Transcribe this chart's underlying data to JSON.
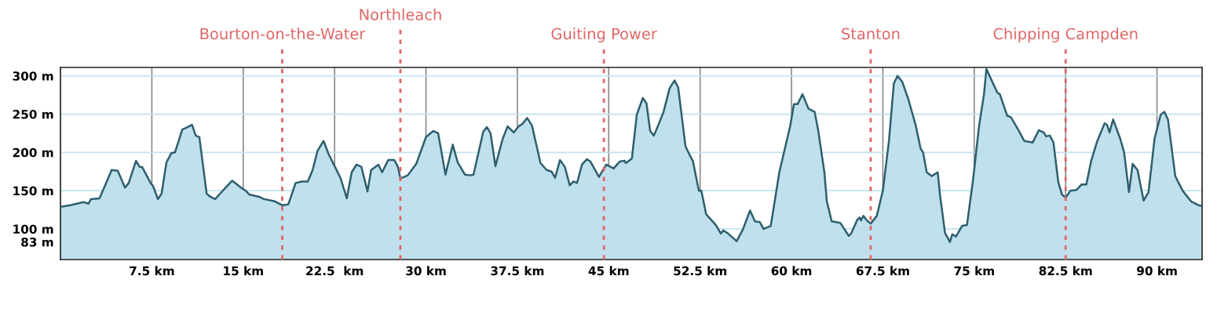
{
  "chart_data": {
    "type": "area",
    "series": [
      {
        "color": "#2e5f6e",
        "x": [
          0,
          0.8,
          1.9,
          2.3,
          2.5,
          3.2,
          3.7,
          4.2,
          4.7,
          5.3,
          5.6,
          6.2,
          6.5,
          6.7,
          7.4,
          7.6,
          8.0,
          8.3,
          8.7,
          9.1,
          9.4,
          10.0,
          10.3,
          10.8,
          11.1,
          11.4,
          12.0,
          12.3,
          12.7,
          13.5,
          14.1,
          14.9,
          15.2,
          15.5,
          16.3,
          16.7,
          17.6,
          18.2,
          18.7,
          19.3,
          19.8,
          20.3,
          20.7,
          21.1,
          21.6,
          22.0,
          22.6,
          23.0,
          23.5,
          23.9,
          24.3,
          24.7,
          25.2,
          25.5,
          26.1,
          26.4,
          26.9,
          27.4,
          27.7,
          27.9,
          28.5,
          29.2,
          30.0,
          30.6,
          31.0,
          31.6,
          32.2,
          32.6,
          33.2,
          33.6,
          33.9,
          34.7,
          35.0,
          35.3,
          35.7,
          36.3,
          36.7,
          37.2,
          37.6,
          37.9,
          38.3,
          38.7,
          39.4,
          39.9,
          40.3,
          40.6,
          41.0,
          41.4,
          41.8,
          42.1,
          42.4,
          42.8,
          43.2,
          43.5,
          44.2,
          44.8,
          45.4,
          45.9,
          46.3,
          46.4,
          46.9,
          47.3,
          47.8,
          48.1,
          48.4,
          48.7,
          49.0,
          49.5,
          50.0,
          50.4,
          50.7,
          51.3,
          51.6,
          51.9,
          52.4,
          52.6,
          53.0,
          53.8,
          54.2,
          54.4,
          54.8,
          55.5,
          56.0,
          56.6,
          57.0,
          57.4,
          57.7,
          58.3,
          59.0,
          59.9,
          60.2,
          60.5,
          60.9,
          61.4,
          61.9,
          62.2,
          62.7,
          62.9,
          63.3,
          64.0,
          64.7,
          64.9,
          65.4,
          65.6,
          65.7,
          65.9,
          66.2,
          66.5,
          67.0,
          67.5,
          68.0,
          68.4,
          68.7,
          69.1,
          69.6,
          70.2,
          70.6,
          70.8,
          71.1,
          71.5,
          72.0,
          72.2,
          72.6,
          73.0,
          73.2,
          73.5,
          74.0,
          74.4,
          74.9,
          75.4,
          75.8,
          76.0,
          76.4,
          76.9,
          77.1,
          77.7,
          78.0,
          78.6,
          79.1,
          79.8,
          80.3,
          80.7,
          80.9,
          81.2,
          81.5,
          81.9,
          82.2,
          82.5,
          82.9,
          83.4,
          83.8,
          84.2,
          84.6,
          85.1,
          85.7,
          85.9,
          86.1,
          86.4,
          87.0,
          87.3,
          87.7,
          88.0,
          88.4,
          88.9,
          89.3,
          89.8,
          90.3,
          90.6,
          90.9,
          91.5,
          92.1,
          92.8,
          93.4,
          93.7
        ],
        "values": [
          129,
          131,
          135,
          133,
          139,
          140,
          158,
          177,
          176,
          154,
          160,
          189,
          181,
          181,
          160,
          156,
          139,
          146,
          187,
          199,
          200,
          230,
          232,
          236,
          222,
          220,
          146,
          142,
          139,
          153,
          163,
          153,
          150,
          145,
          142,
          139,
          136,
          131,
          132,
          160,
          162,
          162,
          177,
          202,
          215,
          198,
          179,
          166,
          140,
          174,
          184,
          181,
          149,
          177,
          184,
          174,
          190,
          190,
          181,
          166,
          170,
          185,
          220,
          228,
          225,
          171,
          210,
          187,
          171,
          170,
          171,
          227,
          233,
          225,
          182,
          218,
          234,
          226,
          234,
          237,
          245,
          235,
          186,
          177,
          175,
          167,
          190,
          181,
          157,
          162,
          160,
          184,
          191,
          188,
          168,
          184,
          179,
          188,
          189,
          186,
          192,
          249,
          271,
          264,
          228,
          222,
          233,
          253,
          284,
          294,
          285,
          208,
          198,
          189,
          150,
          150,
          119,
          105,
          94,
          98,
          94,
          84,
          99,
          124,
          110,
          109,
          100,
          104,
          174,
          235,
          263,
          263,
          276,
          257,
          253,
          228,
          174,
          136,
          110,
          108,
          91,
          94,
          112,
          115,
          111,
          117,
          111,
          107,
          117,
          150,
          215,
          290,
          300,
          292,
          269,
          235,
          205,
          200,
          174,
          169,
          174,
          143,
          95,
          83,
          93,
          90,
          104,
          105,
          164,
          235,
          276,
          309,
          295,
          278,
          276,
          248,
          246,
          230,
          215,
          213,
          229,
          226,
          221,
          222,
          213,
          161,
          145,
          141,
          150,
          151,
          158,
          158,
          189,
          215,
          238,
          236,
          226,
          243,
          217,
          200,
          148,
          185,
          177,
          137,
          148,
          218,
          249,
          253,
          243,
          169,
          150,
          136,
          131,
          130
        ]
      }
    ],
    "xlim": [
      0,
      93.7
    ],
    "xticks": [
      {
        "value": 7.5,
        "label": "7.5 km"
      },
      {
        "value": 15,
        "label": "15 km"
      },
      {
        "value": 22.5,
        "label": "22.5  km"
      },
      {
        "value": 30,
        "label": "30 km"
      },
      {
        "value": 37.5,
        "label": "37.5 km"
      },
      {
        "value": 45,
        "label": "45 km"
      },
      {
        "value": 52.5,
        "label": "52.5 km"
      },
      {
        "value": 60,
        "label": "60 km"
      },
      {
        "value": 67.5,
        "label": "67.5 km"
      },
      {
        "value": 75,
        "label": "75 km"
      },
      {
        "value": 82.5,
        "label": "82.5 km"
      },
      {
        "value": 90,
        "label": "90 km"
      }
    ],
    "ylim": [
      60,
      311
    ],
    "yticks": [
      {
        "value": 83,
        "label": "83 m"
      },
      {
        "value": 100,
        "label": "100 m"
      },
      {
        "value": 150,
        "label": "150 m"
      },
      {
        "value": 200,
        "label": "200 m"
      },
      {
        "value": 250,
        "label": "250 m"
      },
      {
        "value": 300,
        "label": "300 m"
      }
    ],
    "grid": true,
    "ref_lines": [
      {
        "axis": "x",
        "value": 18.2,
        "label": "Bourton-on-the-Water",
        "color": "#e06666",
        "line_style": "dashed"
      },
      {
        "axis": "x",
        "value": 27.9,
        "label": "Northleach",
        "color": "#e06666",
        "line_style": "dashed"
      },
      {
        "axis": "x",
        "value": 44.6,
        "label": "Guiting Power",
        "color": "#e06666",
        "line_style": "dashed"
      },
      {
        "axis": "x",
        "value": 66.5,
        "label": "Stanton",
        "color": "#e06666",
        "line_style": "dashed"
      },
      {
        "axis": "x",
        "value": 82.5,
        "label": "Chipping Campden",
        "color": "#e06666",
        "line_style": "dashed"
      }
    ]
  }
}
